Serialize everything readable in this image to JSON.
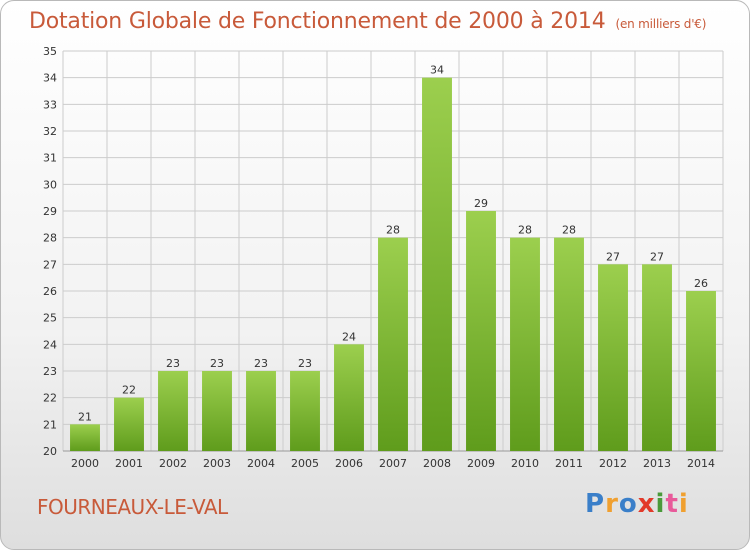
{
  "header": {
    "title": "Dotation Globale de Fonctionnement de 2000 à 2014",
    "subtitle": "(en milliers d'€)"
  },
  "footer": {
    "commune": "FOURNEAUX-LE-VAL",
    "logo_text": "Proxiti",
    "logo_colors": [
      "#3a7fc9",
      "#f0a030",
      "#3a7fc9",
      "#e23a2a",
      "#4a9a3a",
      "#e85a9a",
      "#f0a030"
    ]
  },
  "colors": {
    "bar_top": "#9ccf4e",
    "bar_bottom": "#5f9c1c",
    "grid": "#cccccc",
    "title": "#c85a3a"
  },
  "chart_data": {
    "type": "bar",
    "title": "Dotation Globale de Fonctionnement de 2000 à 2014",
    "subtitle": "(en milliers d'€)",
    "xlabel": "",
    "ylabel": "",
    "categories": [
      "2000",
      "2001",
      "2002",
      "2003",
      "2004",
      "2005",
      "2006",
      "2007",
      "2008",
      "2009",
      "2010",
      "2011",
      "2012",
      "2013",
      "2014"
    ],
    "values": [
      21,
      22,
      23,
      23,
      23,
      23,
      24,
      28,
      34,
      29,
      28,
      28,
      27,
      27,
      26
    ],
    "ylim": [
      20,
      35
    ],
    "yticks": [
      20,
      21,
      22,
      23,
      24,
      25,
      26,
      27,
      28,
      29,
      30,
      31,
      32,
      33,
      34,
      35
    ],
    "grid": true,
    "data_labels": true
  }
}
